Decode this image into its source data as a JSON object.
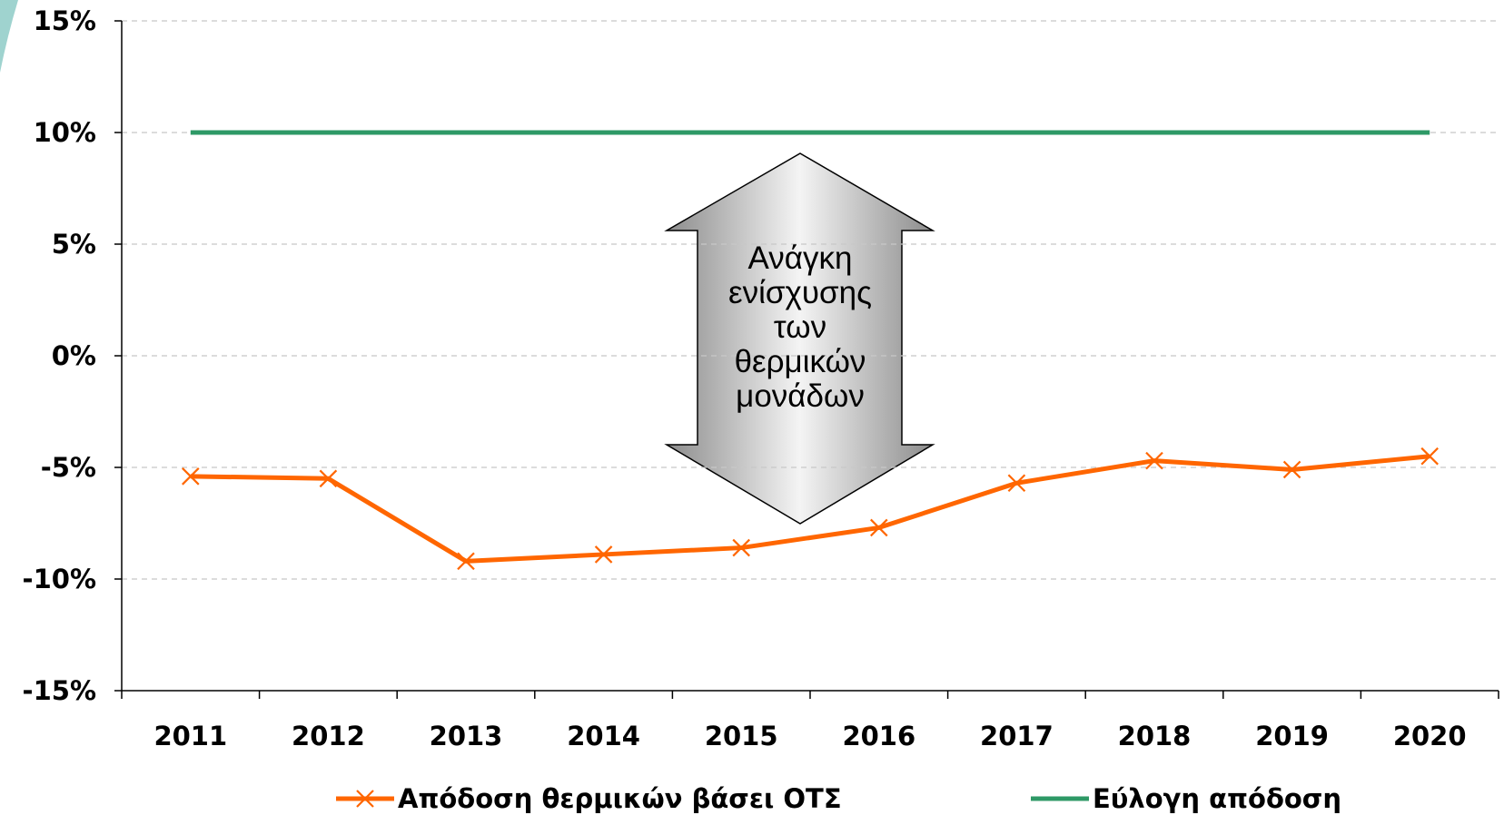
{
  "chart_data": {
    "type": "line",
    "categories": [
      "2011",
      "2012",
      "2013",
      "2014",
      "2015",
      "2016",
      "2017",
      "2018",
      "2019",
      "2020"
    ],
    "series": [
      {
        "name": "Απόδοση θερμικών βάσει ΟΤΣ",
        "color": "#ff6600",
        "marker": "x",
        "values": [
          -5.4,
          -5.5,
          -9.2,
          -8.9,
          -8.6,
          -7.7,
          -5.7,
          -4.7,
          -5.1,
          -4.5
        ]
      },
      {
        "name": "Εύλογη απόδοση",
        "color": "#2e9966",
        "values": [
          10,
          10,
          10,
          10,
          10,
          10,
          10,
          10,
          10,
          10
        ]
      }
    ],
    "ylim": [
      -15,
      15
    ],
    "yticks": [
      {
        "value": -15,
        "label": "-15%"
      },
      {
        "value": -10,
        "label": "-10%"
      },
      {
        "value": -5,
        "label": "-5%"
      },
      {
        "value": 0,
        "label": "0%"
      },
      {
        "value": 5,
        "label": "5%"
      },
      {
        "value": 10,
        "label": "10%"
      },
      {
        "value": 15,
        "label": "15%"
      }
    ],
    "grid": true,
    "legend": "bottom",
    "annotation": [
      "Ανάγκη",
      "ενίσχυσης",
      "των",
      "θερμικών",
      "μονάδων"
    ]
  }
}
